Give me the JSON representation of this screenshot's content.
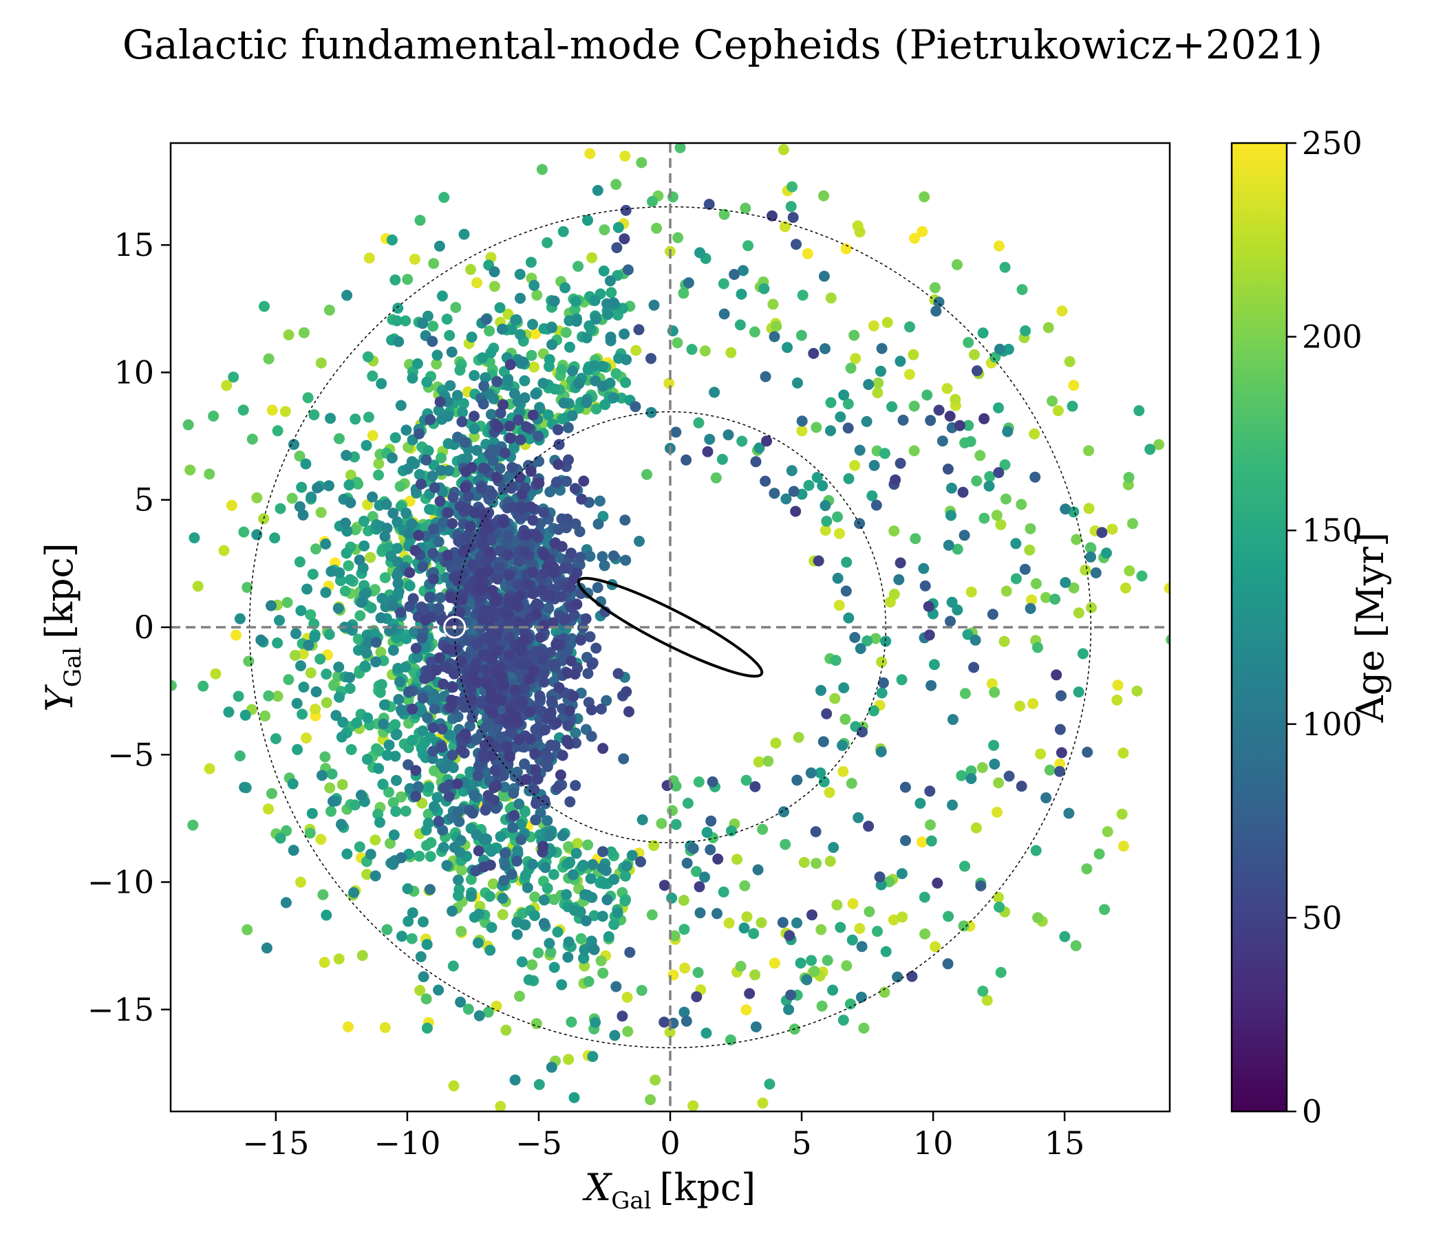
{
  "chart_data": {
    "type": "scatter",
    "title": "Galactic fundamental-mode Cepheids (Pietrukowicz+2021)",
    "xlabel": "X",
    "xlabel_sub": "Gal",
    "xlabel_unit": "[kpc]",
    "ylabel": "Y",
    "ylabel_sub": "Gal",
    "ylabel_unit": "[kpc]",
    "xlim": [
      -19,
      19
    ],
    "ylim": [
      -19,
      19
    ],
    "xticks": [
      -15,
      -10,
      -5,
      0,
      5,
      10,
      15
    ],
    "yticks": [
      -15,
      -10,
      -5,
      0,
      5,
      10,
      15
    ],
    "xtick_labels": [
      "−15",
      "−10",
      "−5",
      "0",
      "5",
      "10",
      "15"
    ],
    "ytick_labels": [
      "−15",
      "−10",
      "−5",
      "0",
      "5",
      "10",
      "15"
    ],
    "colorbar": {
      "label": "Age [Myr]",
      "range": [
        0,
        250
      ],
      "ticks": [
        0,
        50,
        100,
        150,
        200,
        250
      ],
      "tick_labels": [
        "0",
        "50",
        "100",
        "150",
        "200",
        "250"
      ],
      "colormap": "viridis"
    },
    "reference_lines": {
      "x": 0,
      "y": 0,
      "style": "dashed",
      "color": "#808080"
    },
    "circles": [
      {
        "center": [
          0,
          0
        ],
        "radius": 8.2,
        "style": "dotted"
      },
      {
        "center": [
          0,
          0
        ],
        "radius": 16.0,
        "style": "dotted"
      }
    ],
    "bar_ellipse": {
      "center": [
        0,
        0
      ],
      "semi_major": 3.9,
      "semi_minor": 0.65,
      "angle_deg": -27
    },
    "sun_marker": {
      "x": -8.2,
      "y": 0
    },
    "points_description": "Approx. 3300 Cepheids; inner-disk population (near Sun, X -10..-4) mostly young (30-90 Myr); outer disk older (100-250 Myr).",
    "point_count": 3300
  },
  "colors": {
    "viridis": [
      "#440154",
      "#482878",
      "#3e4989",
      "#31688e",
      "#26828e",
      "#1f9e89",
      "#35b779",
      "#6ece58",
      "#b5de2b",
      "#fde725"
    ],
    "reference_line": "#808080",
    "frame": "#000000"
  }
}
